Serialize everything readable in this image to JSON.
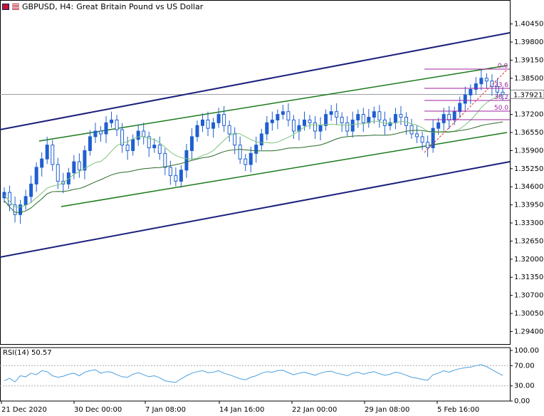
{
  "window": {
    "symbol": "GBPUSD, H4:",
    "description": "Great Britain Pound vs US Dollar"
  },
  "colors": {
    "bull": "#1f5fd0",
    "bear": "#1f5fd0",
    "channel_outer": "#1b1f7a",
    "channel_inner": "#1a7a1a",
    "ma_fast": "#7bc47b",
    "ma_slow": "#2a6a2a",
    "fib": "#a020a0",
    "fib_trend": "#e03030",
    "rsi_line": "#4a9fe0",
    "grid_ref": "#9aa0a6"
  },
  "chart_data": {
    "type": "candlestick",
    "y_ticks": [
      "1.40450",
      "1.39800",
      "1.39150",
      "1.38500",
      "1.37850",
      "1.37200",
      "1.36550",
      "1.35900",
      "1.35250",
      "1.34600",
      "1.33950",
      "1.33300",
      "1.32650",
      "1.32000",
      "1.31350",
      "1.30700",
      "1.30050",
      "1.29400"
    ],
    "ylim": [
      1.2895,
      1.4085
    ],
    "x_labels": [
      "21 Dec 2020",
      "30 Dec 00:00",
      "7 Jan 08:00",
      "14 Jan 16:00",
      "22 Jan 00:00",
      "29 Jan 08:00",
      "5 Feb 16:00"
    ],
    "current_price": "1.37921",
    "closes": [
      1.344,
      1.3395,
      1.336,
      1.3395,
      1.3425,
      1.347,
      1.353,
      1.356,
      1.361,
      1.354,
      1.348,
      1.347,
      1.351,
      1.355,
      1.352,
      1.359,
      1.364,
      1.366,
      1.365,
      1.369,
      1.37,
      1.3665,
      1.361,
      1.359,
      1.363,
      1.366,
      1.364,
      1.36,
      1.361,
      1.358,
      1.353,
      1.35,
      1.348,
      1.352,
      1.359,
      1.364,
      1.368,
      1.37,
      1.367,
      1.369,
      1.372,
      1.368,
      1.365,
      1.361,
      1.356,
      1.354,
      1.358,
      1.361,
      1.365,
      1.369,
      1.37,
      1.372,
      1.373,
      1.37,
      1.366,
      1.368,
      1.37,
      1.369,
      1.366,
      1.368,
      1.372,
      1.373,
      1.371,
      1.369,
      1.366,
      1.37,
      1.372,
      1.369,
      1.371,
      1.373,
      1.37,
      1.368,
      1.369,
      1.372,
      1.371,
      1.368,
      1.365,
      1.364,
      1.362,
      1.36,
      1.367,
      1.369,
      1.372,
      1.37,
      1.373,
      1.376,
      1.379,
      1.381,
      1.383,
      1.385,
      1.384,
      1.382,
      1.38,
      1.3792
    ],
    "rsi": {
      "label": "RSI(14) 50.57",
      "levels": [
        "100.00",
        "70.00",
        "30.00",
        "0.00"
      ],
      "values": [
        40,
        45,
        38,
        50,
        48,
        55,
        52,
        60,
        58,
        50,
        47,
        49,
        53,
        55,
        50,
        57,
        60,
        62,
        55,
        58,
        57,
        52,
        48,
        47,
        53,
        56,
        52,
        48,
        50,
        46,
        40,
        38,
        37,
        44,
        50,
        55,
        58,
        60,
        56,
        57,
        60,
        55,
        52,
        48,
        44,
        42,
        47,
        50,
        55,
        58,
        57,
        60,
        61,
        56,
        52,
        55,
        57,
        54,
        51,
        55,
        58,
        59,
        55,
        53,
        50,
        55,
        57,
        53,
        56,
        58,
        54,
        51,
        53,
        57,
        55,
        51,
        47,
        45,
        43,
        41,
        52,
        55,
        60,
        57,
        61,
        64,
        66,
        67,
        70,
        72,
        68,
        62,
        56,
        50.57
      ]
    },
    "fibonacci": {
      "levels": [
        "0.0",
        "23.6",
        "38.2",
        "50.0"
      ]
    }
  }
}
